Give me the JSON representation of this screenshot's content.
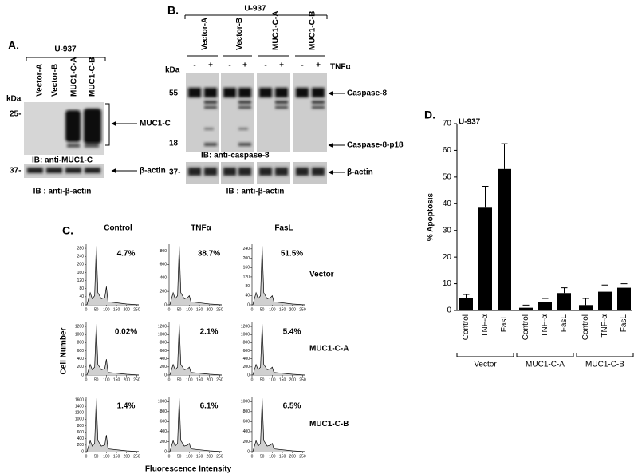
{
  "panel_a": {
    "label": "A.",
    "cell_line": "U-937",
    "lanes": [
      "Vector-A",
      "Vector-B",
      "MUC1-C-A",
      "MUC1-C-B"
    ],
    "kda": "kDa",
    "marker_25": "25-",
    "marker_37": "37-",
    "band": "MUC1-C",
    "blot1_caption": "IB: anti-MUC1-C",
    "actin": "β-actin",
    "blot2_caption": "IB : anti-β-actin"
  },
  "panel_b": {
    "label": "B.",
    "cell_line": "U-937",
    "lanes": [
      "Vector-A",
      "Vector-B",
      "MUC1-C-A",
      "MUC1-C-B"
    ],
    "treatment_signs": [
      "-",
      "+"
    ],
    "treatment": "TNFα",
    "kda": "kDa",
    "markers": [
      "55",
      "18",
      "37-"
    ],
    "bands": [
      "Caspase-8",
      "Caspase-8-p18",
      "β-actin"
    ],
    "blot1_caption": "IB: anti-caspase-8",
    "blot2_caption": "IB : anti-β-actin"
  },
  "panel_c": {
    "label": "C.",
    "columns": [
      "Control",
      "TNFα",
      "FasL"
    ],
    "rows": [
      "Vector",
      "MUC1-C-A",
      "MUC1-C-B"
    ],
    "y_label": "Cell Number",
    "x_label": "Fluorescence Intensity",
    "plots": [
      [
        {
          "percent": "4.7%",
          "ylim": [
            0,
            300
          ],
          "yticks": [
            0,
            40,
            80,
            120,
            160,
            200,
            240,
            280
          ],
          "xlim": [
            0,
            260
          ],
          "xticks": [
            0,
            50,
            100,
            150,
            200,
            250
          ]
        },
        {
          "percent": "38.7%",
          "ylim": [
            0,
            900
          ],
          "yticks": [
            0,
            200,
            400,
            600,
            800
          ],
          "xlim": [
            0,
            260
          ],
          "xticks": [
            0,
            50,
            100,
            150,
            200,
            250
          ]
        },
        {
          "percent": "51.5%",
          "ylim": [
            0,
            260
          ],
          "yticks": [
            0,
            40,
            80,
            120,
            160,
            200,
            240
          ],
          "xlim": [
            0,
            260
          ],
          "xticks": [
            0,
            50,
            100,
            150,
            200,
            250
          ]
        }
      ],
      [
        {
          "percent": "0.02%",
          "ylim": [
            0,
            1300
          ],
          "yticks": [
            0,
            200,
            400,
            600,
            800,
            1000,
            1200
          ],
          "xlim": [
            0,
            260
          ],
          "xticks": [
            0,
            50,
            100,
            150,
            200,
            250
          ]
        },
        {
          "percent": "2.1%",
          "ylim": [
            0,
            1300
          ],
          "yticks": [
            0,
            200,
            400,
            600,
            800,
            1000,
            1200
          ],
          "xlim": [
            0,
            260
          ],
          "xticks": [
            0,
            50,
            100,
            150,
            200,
            250
          ]
        },
        {
          "percent": "5.4%",
          "ylim": [
            0,
            1300
          ],
          "yticks": [
            0,
            200,
            400,
            600,
            800,
            1000,
            1200
          ],
          "xlim": [
            0,
            260
          ],
          "xticks": [
            0,
            50,
            100,
            150,
            200,
            250
          ]
        }
      ],
      [
        {
          "percent": "1.4%",
          "ylim": [
            0,
            1700
          ],
          "yticks": [
            0,
            200,
            400,
            600,
            800,
            1000,
            1200,
            1400,
            1600
          ],
          "xlim": [
            0,
            260
          ],
          "xticks": [
            0,
            50,
            100,
            150,
            200,
            250
          ]
        },
        {
          "percent": "6.1%",
          "ylim": [
            0,
            1100
          ],
          "yticks": [
            0,
            200,
            400,
            600,
            800,
            1000
          ],
          "xlim": [
            0,
            260
          ],
          "xticks": [
            0,
            50,
            100,
            150,
            200,
            250
          ]
        },
        {
          "percent": "6.5%",
          "ylim": [
            0,
            1100
          ],
          "yticks": [
            0,
            200,
            400,
            600,
            800,
            1000
          ],
          "xlim": [
            0,
            260
          ],
          "xticks": [
            0,
            50,
            100,
            150,
            200,
            250
          ]
        }
      ]
    ]
  },
  "chart_data": {
    "type": "bar",
    "label": "D.",
    "title": "U-937",
    "ylabel": "% Apoptosis",
    "categories": [
      "Control",
      "TNF-α",
      "FasL",
      "Control",
      "TNF-α",
      "FasL",
      "Control",
      "TNF-α",
      "FasL"
    ],
    "groups": [
      "Vector",
      "MUC1-C-A",
      "MUC1-C-B"
    ],
    "values": [
      4.5,
      38.5,
      53,
      1,
      3,
      6.5,
      2,
      7,
      8.5
    ],
    "errors": [
      1.5,
      8,
      9.5,
      1,
      1.5,
      2,
      2.5,
      2.5,
      1.5
    ],
    "color": "#000000",
    "ylim": [
      0,
      70
    ],
    "yticks": [
      0,
      10,
      20,
      30,
      40,
      50,
      60,
      70
    ]
  }
}
